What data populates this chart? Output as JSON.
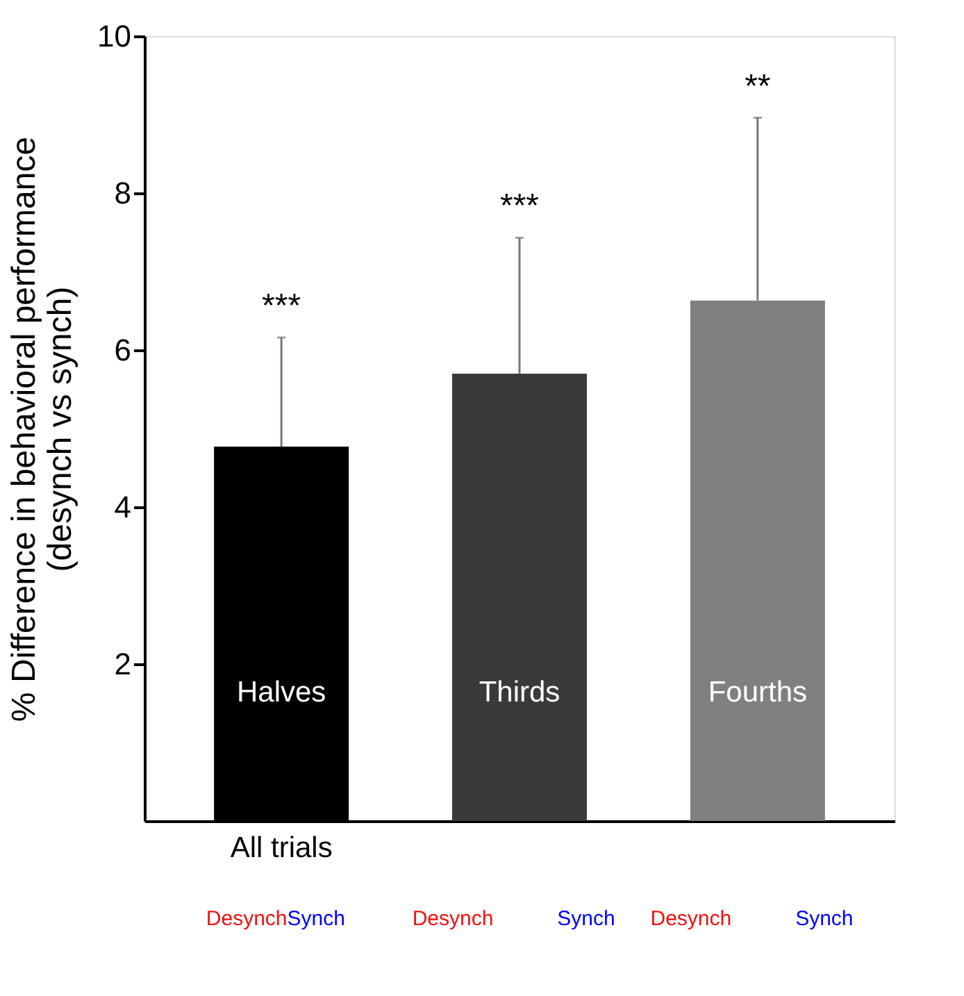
{
  "chart_data": {
    "type": "bar",
    "ylabel": "% Difference in behavioral performance\n(desynch vs synch)",
    "categories": [
      "Halves",
      "Thirds",
      "Fourths"
    ],
    "values": [
      4.77,
      5.7,
      6.63
    ],
    "colors": [
      "#000000",
      "#3a3a3a",
      "#808080"
    ],
    "errors": [
      [
        4.77,
        6.16
      ],
      [
        5.7,
        7.43
      ],
      [
        6.63,
        8.96
      ]
    ],
    "ylim": [
      0,
      10
    ],
    "yticks": [
      2,
      4,
      6,
      8,
      10
    ],
    "grid": false,
    "annotations": [
      {
        "text": "***",
        "x": "Halves",
        "y": 6.16
      },
      {
        "text": "***",
        "x": "Thirds",
        "y": 7.43
      },
      {
        "text": "**",
        "x": "Fourths",
        "y": 8.96
      },
      "All trials",
      "Desynch",
      "Synch",
      "Desynch",
      "Synch",
      "Desynch",
      "Synch"
    ]
  }
}
